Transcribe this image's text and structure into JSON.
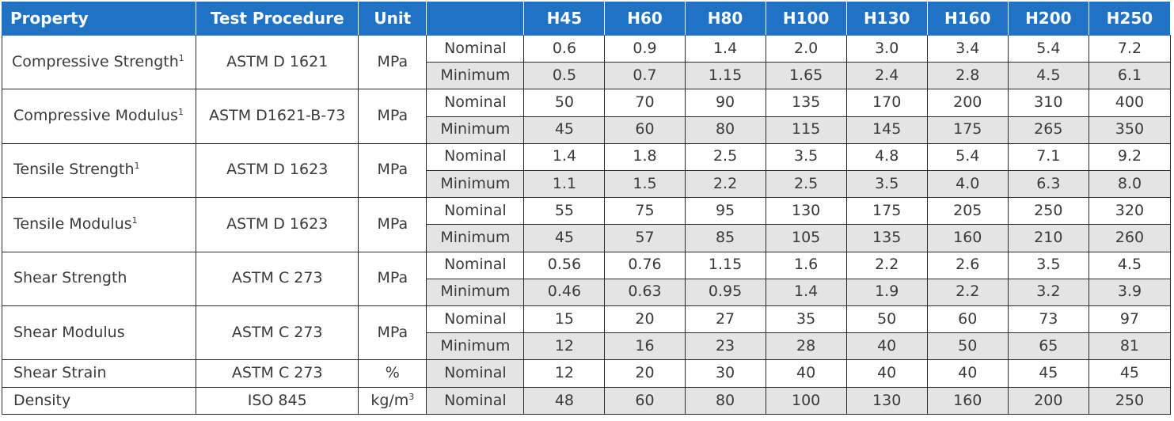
{
  "headers": {
    "property": "Property",
    "procedure": "Test Procedure",
    "unit": "Unit",
    "spacer": "",
    "grades": [
      "H45",
      "H60",
      "H80",
      "H100",
      "H130",
      "H160",
      "H200",
      "H250"
    ]
  },
  "footnote_mark": "1",
  "colors": {
    "header_bg": "#1f72c4",
    "header_text": "#ffffff",
    "shade": "#e4e4e4",
    "border": "#2b2b2b"
  },
  "rows": [
    {
      "property": "Compressive Strength",
      "sup": "1",
      "procedure": "ASTM D 1621",
      "unit": "MPa",
      "nominal_label": "Nominal",
      "minimum_label": "Minimum",
      "nominal": [
        "0.6",
        "0.9",
        "1.4",
        "2.0",
        "3.0",
        "3.4",
        "5.4",
        "7.2"
      ],
      "minimum": [
        "0.5",
        "0.7",
        "1.15",
        "1.65",
        "2.4",
        "2.8",
        "4.5",
        "6.1"
      ]
    },
    {
      "property": "Compressive Modulus",
      "sup": "1",
      "procedure": "ASTM D1621-B-73",
      "unit": "MPa",
      "nominal_label": "Nominal",
      "minimum_label": "Minimum",
      "nominal": [
        "50",
        "70",
        "90",
        "135",
        "170",
        "200",
        "310",
        "400"
      ],
      "minimum": [
        "45",
        "60",
        "80",
        "115",
        "145",
        "175",
        "265",
        "350"
      ]
    },
    {
      "property": "Tensile Strength",
      "sup": "1",
      "procedure": "ASTM D 1623",
      "unit": "MPa",
      "nominal_label": "Nominal",
      "minimum_label": "Minimum",
      "nominal": [
        "1.4",
        "1.8",
        "2.5",
        "3.5",
        "4.8",
        "5.4",
        "7.1",
        "9.2"
      ],
      "minimum": [
        "1.1",
        "1.5",
        "2.2",
        "2.5",
        "3.5",
        "4.0",
        "6.3",
        "8.0"
      ]
    },
    {
      "property": "Tensile Modulus",
      "sup": "1",
      "procedure": "ASTM D 1623",
      "unit": "MPa",
      "nominal_label": "Nominal",
      "minimum_label": "Minimum",
      "nominal": [
        "55",
        "75",
        "95",
        "130",
        "175",
        "205",
        "250",
        "320"
      ],
      "minimum": [
        "45",
        "57",
        "85",
        "105",
        "135",
        "160",
        "210",
        "260"
      ]
    },
    {
      "property": "Shear Strength",
      "sup": "",
      "procedure": "ASTM C 273",
      "unit": "MPa",
      "nominal_label": "Nominal",
      "minimum_label": "Minimum",
      "nominal": [
        "0.56",
        "0.76",
        "1.15",
        "1.6",
        "2.2",
        "2.6",
        "3.5",
        "4.5"
      ],
      "minimum": [
        "0.46",
        "0.63",
        "0.95",
        "1.4",
        "1.9",
        "2.2",
        "3.2",
        "3.9"
      ]
    },
    {
      "property": "Shear Modulus",
      "sup": "",
      "procedure": "ASTM C 273",
      "unit": "MPa",
      "nominal_label": "Nominal",
      "minimum_label": "Minimum",
      "nominal": [
        "15",
        "20",
        "27",
        "35",
        "50",
        "60",
        "73",
        "97"
      ],
      "minimum": [
        "12",
        "16",
        "23",
        "28",
        "40",
        "50",
        "65",
        "81"
      ]
    }
  ],
  "single_rows": [
    {
      "property": "Shear Strain",
      "procedure": "ASTM C 273",
      "unit": "%",
      "label": "Nominal",
      "values": [
        "12",
        "20",
        "30",
        "40",
        "40",
        "40",
        "45",
        "45"
      ]
    },
    {
      "property": "Density",
      "procedure": "ISO 845",
      "unit": "kg/m",
      "unit_sup": "3",
      "label": "Nominal",
      "values": [
        "48",
        "60",
        "80",
        "100",
        "130",
        "160",
        "200",
        "250"
      ]
    }
  ]
}
